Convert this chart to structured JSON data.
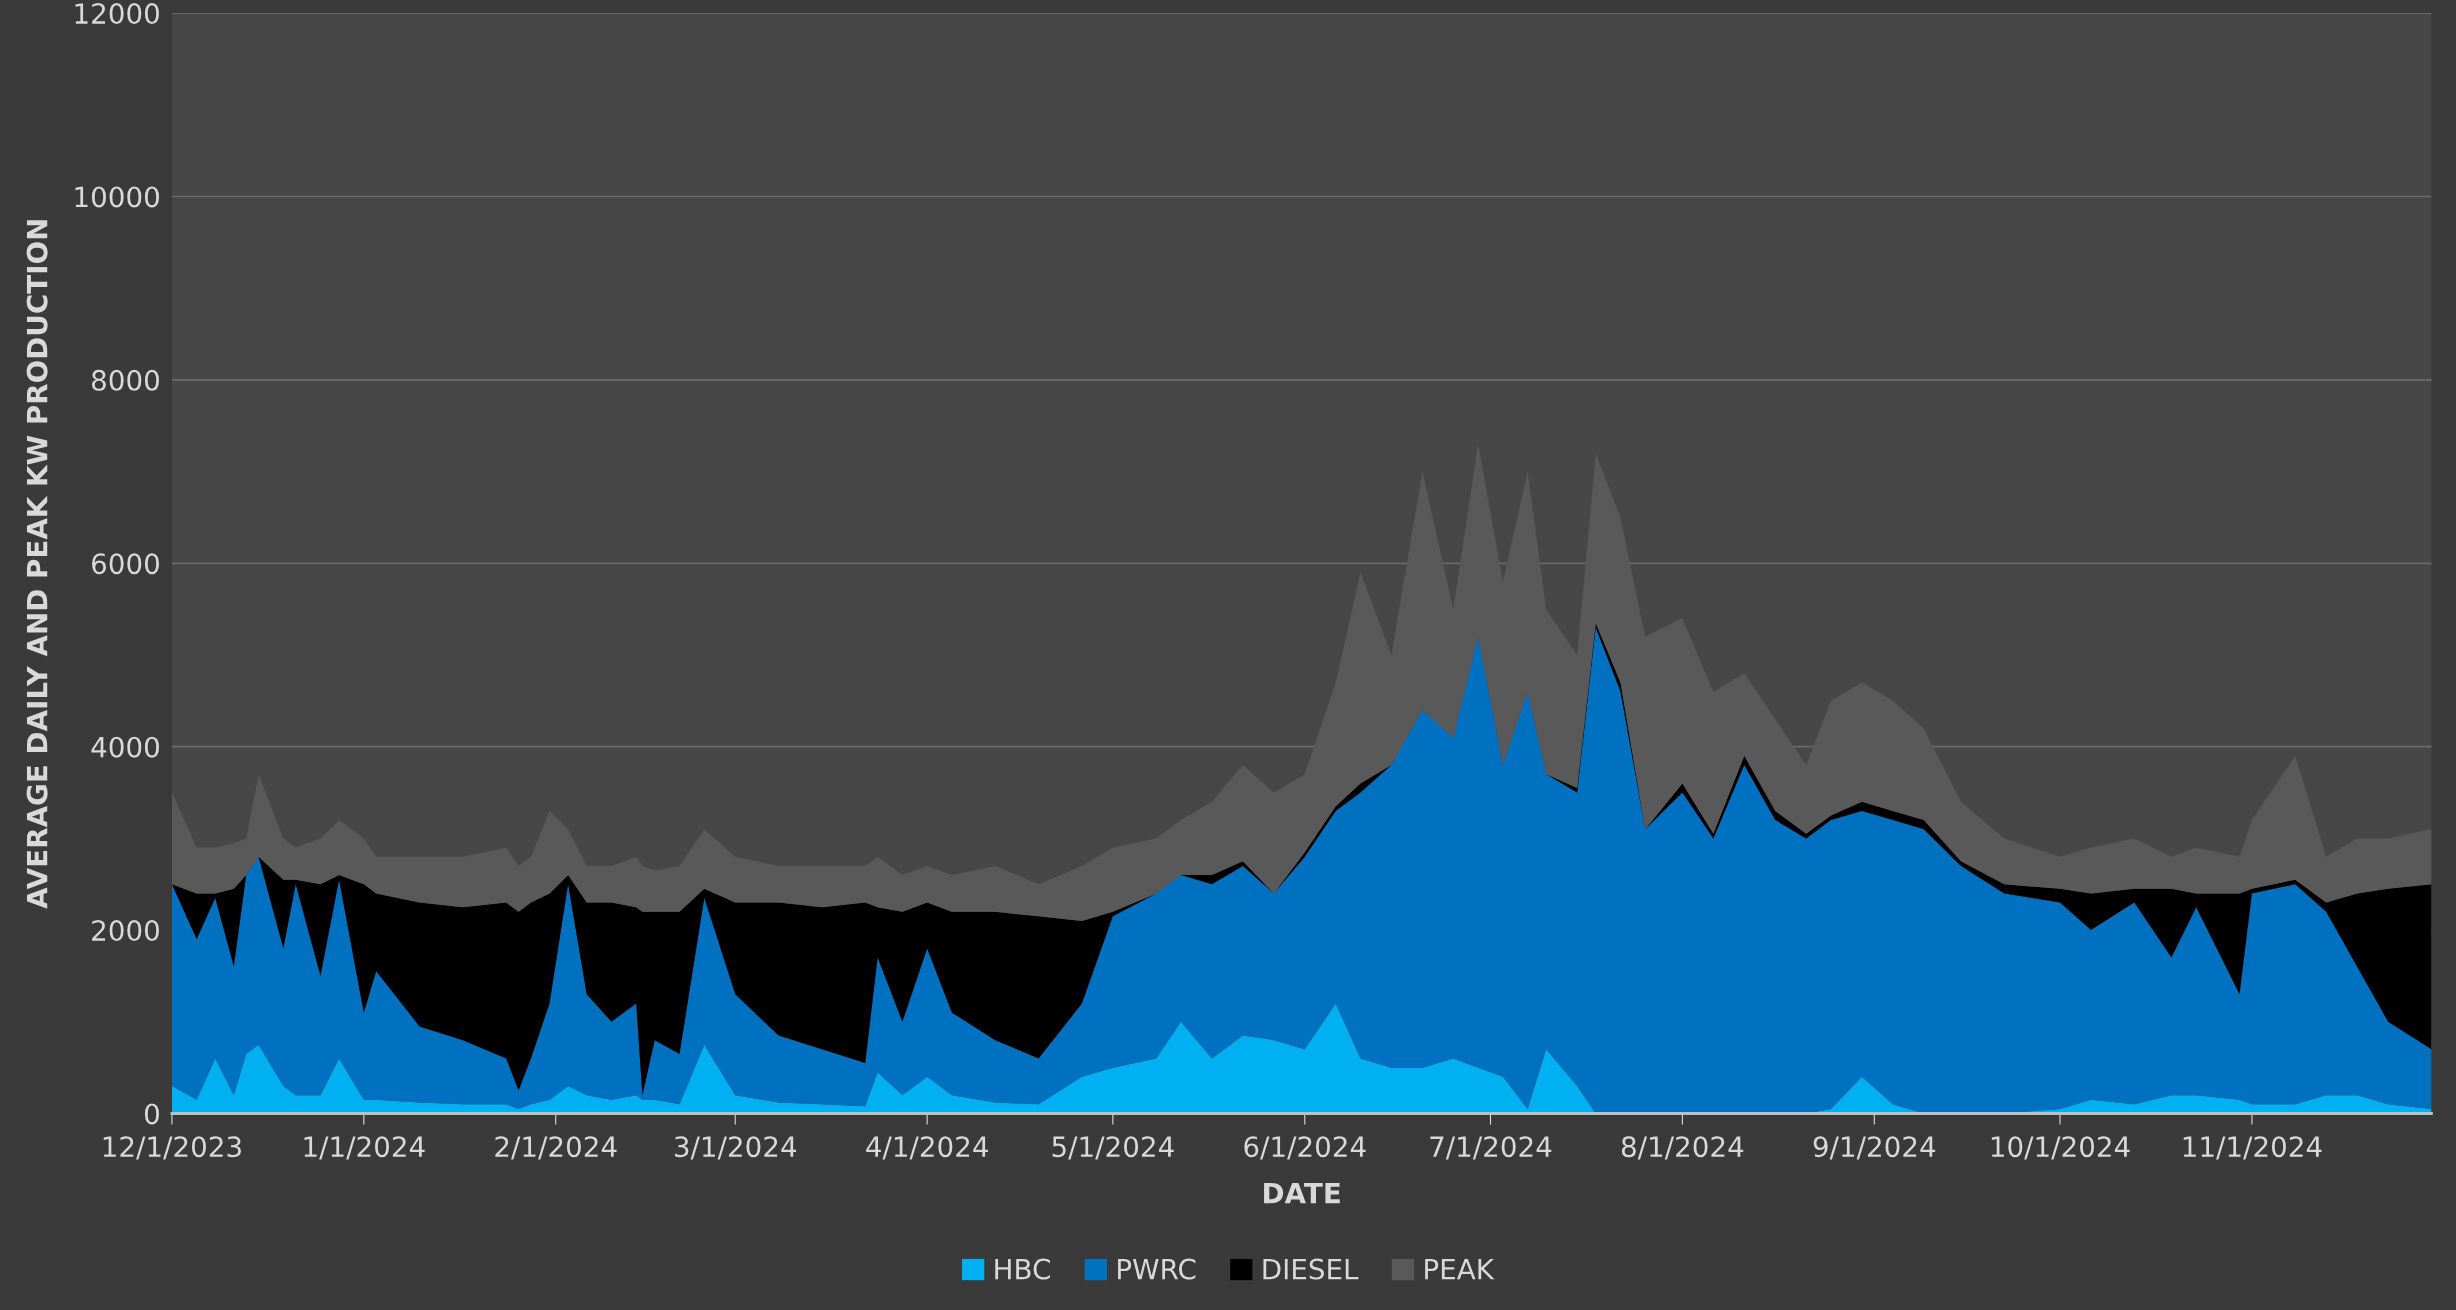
{
  "chart_data": {
    "type": "area",
    "stacked": true,
    "xlabel": "DATE",
    "ylabel": "AVERAGE DAILY AND PEAK KW PRODUCTION",
    "x": [
      "2023-12-01",
      "2023-12-05",
      "2023-12-08",
      "2023-12-11",
      "2023-12-13",
      "2023-12-15",
      "2023-12-19",
      "2023-12-21",
      "2023-12-25",
      "2023-12-28",
      "2024-01-01",
      "2024-01-03",
      "2024-01-10",
      "2024-01-17",
      "2024-01-24",
      "2024-01-26",
      "2024-01-28",
      "2024-01-31",
      "2024-02-03",
      "2024-02-06",
      "2024-02-10",
      "2024-02-14",
      "2024-02-15",
      "2024-02-17",
      "2024-02-21",
      "2024-02-25",
      "2024-03-01",
      "2024-03-08",
      "2024-03-15",
      "2024-03-22",
      "2024-03-24",
      "2024-03-28",
      "2024-04-01",
      "2024-04-05",
      "2024-04-12",
      "2024-04-19",
      "2024-04-26",
      "2024-05-01",
      "2024-05-08",
      "2024-05-12",
      "2024-05-17",
      "2024-05-22",
      "2024-05-27",
      "2024-06-01",
      "2024-06-06",
      "2024-06-10",
      "2024-06-15",
      "2024-06-20",
      "2024-06-25",
      "2024-06-29",
      "2024-07-03",
      "2024-07-07",
      "2024-07-10",
      "2024-07-15",
      "2024-07-18",
      "2024-07-22",
      "2024-07-26",
      "2024-08-01",
      "2024-08-06",
      "2024-08-11",
      "2024-08-16",
      "2024-08-21",
      "2024-08-25",
      "2024-08-30",
      "2024-09-04",
      "2024-09-09",
      "2024-09-15",
      "2024-09-22",
      "2024-10-01",
      "2024-10-06",
      "2024-10-13",
      "2024-10-19",
      "2024-10-23",
      "2024-10-30",
      "2024-11-01",
      "2024-11-08",
      "2024-11-13",
      "2024-11-18",
      "2024-11-23",
      "2024-11-30"
    ],
    "series": [
      {
        "name": "HBC",
        "color": "#00b0f0",
        "values": [
          300,
          150,
          600,
          200,
          650,
          750,
          300,
          200,
          200,
          600,
          150,
          150,
          120,
          100,
          100,
          50,
          100,
          150,
          300,
          200,
          150,
          200,
          150,
          150,
          100,
          750,
          200,
          120,
          100,
          80,
          450,
          200,
          400,
          200,
          120,
          100,
          400,
          500,
          600,
          1000,
          600,
          850,
          800,
          700,
          1200,
          600,
          500,
          500,
          600,
          500,
          400,
          50,
          700,
          300,
          0,
          0,
          0,
          0,
          0,
          0,
          0,
          0,
          50,
          400,
          100,
          0,
          0,
          0,
          50,
          150,
          100,
          200,
          200,
          150,
          100,
          100,
          200,
          200,
          100,
          50
        ]
      },
      {
        "name": "PWRC",
        "color": "#0070c0",
        "values": [
          2200,
          1750,
          1750,
          1400,
          1950,
          2050,
          1500,
          2300,
          1300,
          1950,
          950,
          1400,
          830,
          700,
          500,
          200,
          500,
          1050,
          2200,
          1100,
          850,
          1000,
          50,
          650,
          550,
          1600,
          1100,
          730,
          600,
          470,
          1250,
          800,
          1400,
          900,
          680,
          500,
          800,
          1650,
          1800,
          1600,
          1900,
          1850,
          1600,
          2100,
          2100,
          2900,
          3300,
          3900,
          3500,
          4700,
          3400,
          4550,
          3000,
          3200,
          5300,
          4600,
          3100,
          3500,
          3000,
          3800,
          3200,
          3000,
          3150,
          2900,
          3100,
          3100,
          2700,
          2400,
          2250,
          1850,
          2200,
          1500,
          2050,
          1150,
          2300,
          2400,
          2000,
          1400,
          900,
          650
        ]
      },
      {
        "name": "DIESEL",
        "color": "#000000",
        "values": [
          0,
          500,
          50,
          850,
          0,
          0,
          750,
          50,
          1000,
          50,
          1400,
          850,
          1350,
          1450,
          1700,
          1950,
          1700,
          1200,
          100,
          1000,
          1300,
          1050,
          2000,
          1400,
          1550,
          100,
          1000,
          1450,
          1550,
          1750,
          550,
          1200,
          500,
          1100,
          1400,
          1550,
          900,
          50,
          0,
          0,
          100,
          50,
          0,
          50,
          50,
          100,
          0,
          0,
          0,
          0,
          0,
          0,
          0,
          50,
          50,
          100,
          0,
          100,
          50,
          100,
          100,
          50,
          50,
          100,
          100,
          100,
          50,
          100,
          150,
          400,
          150,
          750,
          150,
          1100,
          50,
          50,
          100,
          800,
          1450,
          1800
        ]
      },
      {
        "name": "PEAK",
        "color": "#595959",
        "values": [
          1000,
          500,
          500,
          500,
          400,
          900,
          450,
          350,
          500,
          600,
          500,
          400,
          500,
          550,
          600,
          500,
          500,
          900,
          500,
          400,
          400,
          550,
          500,
          450,
          500,
          650,
          500,
          400,
          450,
          400,
          550,
          400,
          400,
          400,
          500,
          350,
          600,
          700,
          600,
          600,
          800,
          1050,
          1100,
          850,
          1350,
          2300,
          1200,
          2600,
          1400,
          2100,
          2000,
          2400,
          1800,
          1450,
          1850,
          1800,
          2100,
          1800,
          1550,
          900,
          1000,
          750,
          1250,
          1300,
          1200,
          1000,
          650,
          500,
          350,
          500,
          550,
          350,
          500,
          400,
          750,
          1350,
          500,
          600,
          550,
          600
        ]
      }
    ],
    "xlim": [
      "2023-12-01",
      "2024-11-30"
    ],
    "xticks": [
      {
        "value": "2023-12-01",
        "label": "12/1/2023"
      },
      {
        "value": "2024-01-01",
        "label": "1/1/2024"
      },
      {
        "value": "2024-02-01",
        "label": "2/1/2024"
      },
      {
        "value": "2024-03-01",
        "label": "3/1/2024"
      },
      {
        "value": "2024-04-01",
        "label": "4/1/2024"
      },
      {
        "value": "2024-05-01",
        "label": "5/1/2024"
      },
      {
        "value": "2024-06-01",
        "label": "6/1/2024"
      },
      {
        "value": "2024-07-01",
        "label": "7/1/2024"
      },
      {
        "value": "2024-08-01",
        "label": "8/1/2024"
      },
      {
        "value": "2024-09-01",
        "label": "9/1/2024"
      },
      {
        "value": "2024-10-01",
        "label": "10/1/2024"
      },
      {
        "value": "2024-11-01",
        "label": "11/1/2024"
      }
    ],
    "ylim": [
      0,
      12000
    ],
    "yticks": [
      0,
      2000,
      4000,
      6000,
      8000,
      10000,
      12000
    ],
    "grid": "y",
    "legend": "bottom"
  }
}
